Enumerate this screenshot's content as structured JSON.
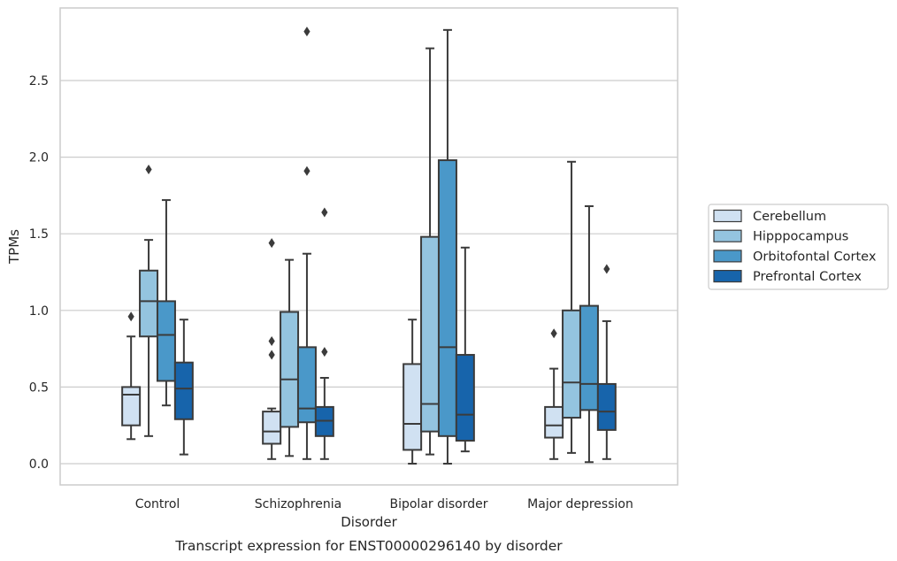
{
  "chart_data": {
    "type": "box",
    "title": "",
    "caption": "Transcript expression for ENST00000296140 by disorder",
    "xlabel": "Disorder",
    "ylabel": "TPMs",
    "ylim": [
      -0.14,
      2.98
    ],
    "yticks": [
      "0.0",
      "0.5",
      "1.0",
      "1.5",
      "2.0",
      "2.5"
    ],
    "grid": "horizontal",
    "legend_position": "right",
    "categories": [
      "Control",
      "Schizophrenia",
      "Bipolar disorder",
      "Major depression"
    ],
    "series": [
      {
        "name": "Cerebellum",
        "color": "#d0e1f2",
        "boxes": [
          {
            "whisker_low": 0.16,
            "q1": 0.25,
            "median": 0.45,
            "q3": 0.5,
            "whisker_high": 0.83,
            "outliers": [
              0.96
            ]
          },
          {
            "whisker_low": 0.03,
            "q1": 0.13,
            "median": 0.21,
            "q3": 0.34,
            "whisker_high": 0.36,
            "outliers": [
              0.71,
              0.8,
              1.44
            ]
          },
          {
            "whisker_low": 0.0,
            "q1": 0.09,
            "median": 0.26,
            "q3": 0.65,
            "whisker_high": 0.94,
            "outliers": []
          },
          {
            "whisker_low": 0.03,
            "q1": 0.17,
            "median": 0.25,
            "q3": 0.37,
            "whisker_high": 0.62,
            "outliers": [
              0.85
            ]
          }
        ]
      },
      {
        "name": "Hipppocampus",
        "color": "#94c4df",
        "boxes": [
          {
            "whisker_low": 0.18,
            "q1": 0.83,
            "median": 1.06,
            "q3": 1.26,
            "whisker_high": 1.46,
            "outliers": [
              1.92
            ]
          },
          {
            "whisker_low": 0.05,
            "q1": 0.24,
            "median": 0.55,
            "q3": 0.99,
            "whisker_high": 1.33,
            "outliers": []
          },
          {
            "whisker_low": 0.06,
            "q1": 0.21,
            "median": 0.39,
            "q3": 1.48,
            "whisker_high": 2.71,
            "outliers": []
          },
          {
            "whisker_low": 0.07,
            "q1": 0.3,
            "median": 0.53,
            "q3": 1.0,
            "whisker_high": 1.97,
            "outliers": []
          }
        ]
      },
      {
        "name": "Orbitofontal Cortex",
        "color": "#4a98c9",
        "boxes": [
          {
            "whisker_low": 0.38,
            "q1": 0.54,
            "median": 0.84,
            "q3": 1.06,
            "whisker_high": 1.72,
            "outliers": []
          },
          {
            "whisker_low": 0.03,
            "q1": 0.27,
            "median": 0.36,
            "q3": 0.76,
            "whisker_high": 1.37,
            "outliers": [
              1.91,
              2.82
            ]
          },
          {
            "whisker_low": 0.0,
            "q1": 0.18,
            "median": 0.76,
            "q3": 1.98,
            "whisker_high": 2.83,
            "outliers": []
          },
          {
            "whisker_low": 0.01,
            "q1": 0.35,
            "median": 0.52,
            "q3": 1.03,
            "whisker_high": 1.68,
            "outliers": []
          }
        ]
      },
      {
        "name": "Prefrontal Cortex",
        "color": "#1764ab",
        "boxes": [
          {
            "whisker_low": 0.06,
            "q1": 0.29,
            "median": 0.49,
            "q3": 0.66,
            "whisker_high": 0.94,
            "outliers": []
          },
          {
            "whisker_low": 0.03,
            "q1": 0.18,
            "median": 0.28,
            "q3": 0.37,
            "whisker_high": 0.56,
            "outliers": [
              0.73,
              1.64
            ]
          },
          {
            "whisker_low": 0.08,
            "q1": 0.15,
            "median": 0.32,
            "q3": 0.71,
            "whisker_high": 1.41,
            "outliers": []
          },
          {
            "whisker_low": 0.03,
            "q1": 0.22,
            "median": 0.34,
            "q3": 0.52,
            "whisker_high": 0.93,
            "outliers": [
              1.27
            ]
          }
        ]
      }
    ]
  },
  "colors": {
    "edge": "#3b3b3b",
    "grid": "#cccccc",
    "frame": "#cccccc"
  }
}
